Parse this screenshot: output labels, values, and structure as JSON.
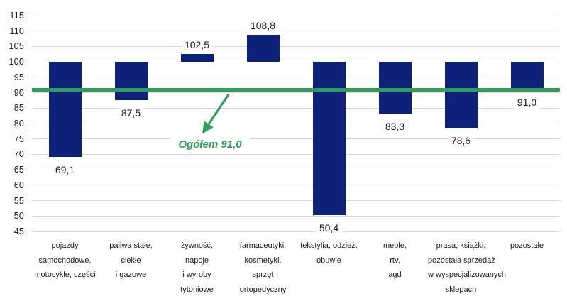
{
  "chart_data": {
    "type": "bar",
    "title": "",
    "categories": [
      "pojazdy samochodowe, motocykle, części",
      "paliwa stałe, ciekłe i gazowe",
      "żywność, napoje i wyroby tytoniowe",
      "farmaceutyki, kosmetyki, sprzęt ortopedyczny",
      "tekstylia, odzież, obuwie",
      "meble, rtv, agd",
      "prasa, książki, pozostała sprzedaż w wyspecjalizowanych sklepach",
      "pozostałe"
    ],
    "category_lines": [
      [
        "pojazdy",
        "samochodowe,",
        "motocykle, części"
      ],
      [
        "paliwa stałe,",
        "ciekłe",
        "i gazowe"
      ],
      [
        "żywność,",
        "napoje",
        "i wyroby",
        "tytoniowe"
      ],
      [
        "farmaceutyki,",
        "kosmetyki,",
        "sprzęt",
        "ortopedyczny"
      ],
      [
        "tekstylia, odzież,",
        "obuwie"
      ],
      [
        "meble,",
        "rtv,",
        "agd"
      ],
      [
        "prasa, książki,",
        "pozostała sprzedaż",
        "w wyspecjalizowanych",
        "sklepach"
      ],
      [
        "pozostałe"
      ]
    ],
    "values": [
      69.1,
      87.5,
      102.5,
      108.8,
      50.4,
      83.3,
      78.6,
      91.0
    ],
    "value_labels": [
      "69,1",
      "87,5",
      "102,5",
      "108,8",
      "50,4",
      "83,3",
      "78,6",
      "91,0"
    ],
    "baseline": 100,
    "ylim": [
      45,
      115
    ],
    "y_ticks": [
      115,
      110,
      105,
      100,
      95,
      90,
      85,
      80,
      75,
      70,
      65,
      60,
      55,
      50,
      45
    ],
    "grid": true,
    "legend": "none",
    "reference_line": {
      "value": 91.0,
      "label": "Ogółem 91,0"
    },
    "colors": {
      "bar": "#0d2178",
      "reference": "#2f9e5c",
      "gridline": "#d9d9d9",
      "text": "#1a1a1a"
    }
  }
}
